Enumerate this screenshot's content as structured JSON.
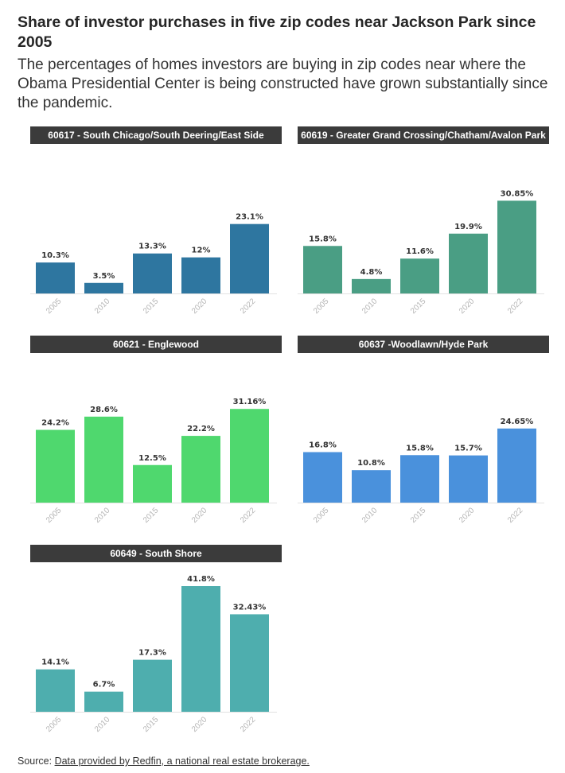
{
  "title": "Share of investor purchases in five zip codes near Jackson Park since 2005",
  "subtitle": "The percentages of homes investors are buying in zip codes near where the Obama Presidential Center is being constructed have grown substantially since the pandemic.",
  "source": {
    "prefix": "Source: ",
    "link_text": "Data provided by Redfin, a national real estate brokerage."
  },
  "chart_data": [
    {
      "type": "bar",
      "title": "60617 - South Chicago/South Deering/East Side",
      "categories": [
        "2005",
        "2010",
        "2015",
        "2020",
        "2022"
      ],
      "values": [
        10.3,
        3.5,
        13.3,
        12,
        23.1
      ],
      "value_labels": [
        "10.3%",
        "3.5%",
        "13.3%",
        "12%",
        "23.1%"
      ],
      "color": "#2e76a0",
      "ylim": [
        0,
        50
      ]
    },
    {
      "type": "bar",
      "title": "60619 - Greater Grand Crossing/Chatham/Avalon Park",
      "categories": [
        "2005",
        "2010",
        "2015",
        "2020",
        "2022"
      ],
      "values": [
        15.8,
        4.8,
        11.6,
        19.9,
        30.85
      ],
      "value_labels": [
        "15.8%",
        "4.8%",
        "11.6%",
        "19.9%",
        "30.85%"
      ],
      "color": "#4a9e84",
      "ylim": [
        0,
        50
      ]
    },
    {
      "type": "bar",
      "title": "60621 - Englewood",
      "categories": [
        "2005",
        "2010",
        "2015",
        "2020",
        "2022"
      ],
      "values": [
        24.2,
        28.6,
        12.5,
        22.2,
        31.16
      ],
      "value_labels": [
        "24.2%",
        "28.6%",
        "12.5%",
        "22.2%",
        "31.16%"
      ],
      "color": "#4fd86e",
      "ylim": [
        0,
        50
      ]
    },
    {
      "type": "bar",
      "title": "60637 -Woodlawn/Hyde Park",
      "categories": [
        "2005",
        "2010",
        "2015",
        "2020",
        "2022"
      ],
      "values": [
        16.8,
        10.8,
        15.8,
        15.7,
        24.65
      ],
      "value_labels": [
        "16.8%",
        "10.8%",
        "15.8%",
        "15.7%",
        "24.65%"
      ],
      "color": "#4a91dc",
      "ylim": [
        0,
        50
      ]
    },
    {
      "type": "bar",
      "title": "60649 - South Shore",
      "categories": [
        "2005",
        "2010",
        "2015",
        "2020",
        "2022"
      ],
      "values": [
        14.1,
        6.7,
        17.3,
        41.8,
        32.43
      ],
      "value_labels": [
        "14.1%",
        "6.7%",
        "17.3%",
        "41.8%",
        "32.43%"
      ],
      "color": "#4eaeae",
      "ylim": [
        0,
        50
      ]
    }
  ]
}
